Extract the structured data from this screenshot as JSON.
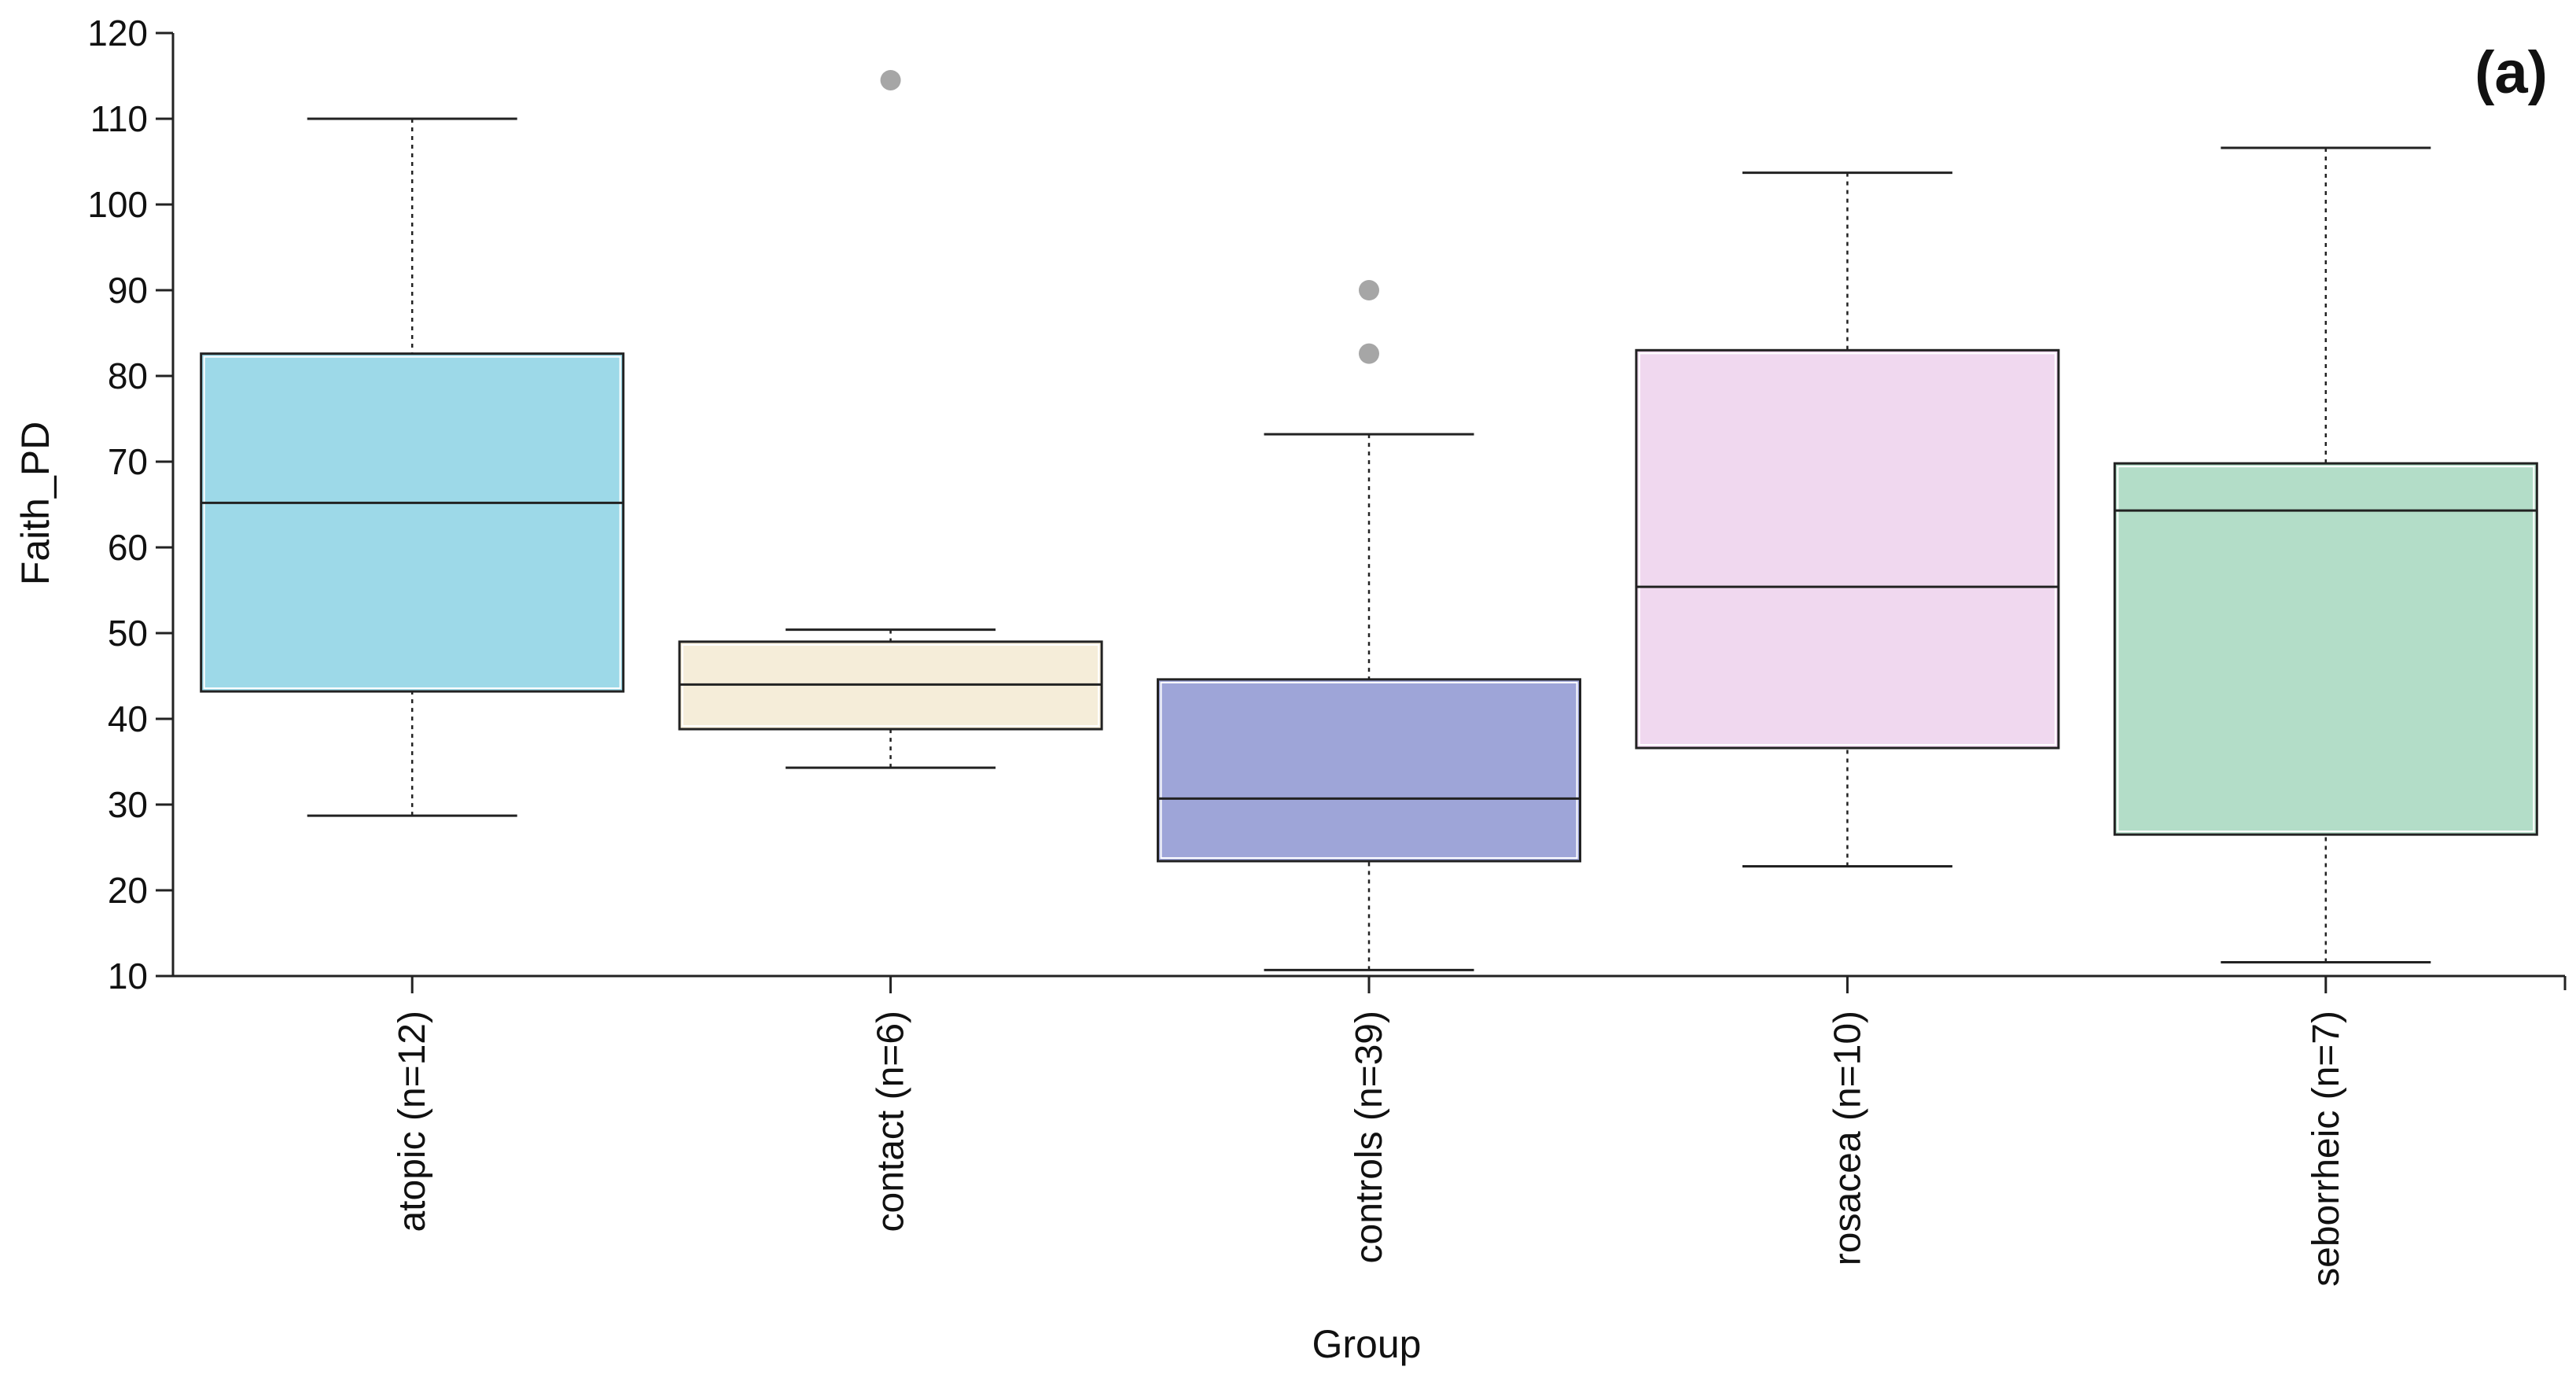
{
  "chart_data": {
    "type": "box",
    "panel_label": "(a)",
    "xlabel": "Group",
    "ylabel": "Faith_PD",
    "ylim": [
      10,
      120
    ],
    "yticks": [
      10,
      20,
      30,
      40,
      50,
      60,
      70,
      80,
      90,
      100,
      110,
      120
    ],
    "categories": [
      "atopic (n=12)",
      "contact (n=6)",
      "controls (n=39)",
      "rosacea (n=10)",
      "seborrheic (n=7)"
    ],
    "boxes": [
      {
        "name": "atopic (n=12)",
        "whisker_low": 28.7,
        "q1": 43.2,
        "median": 65.2,
        "q3": 82.6,
        "whisker_high": 110.0,
        "outliers": [],
        "color": "#9dd9e8"
      },
      {
        "name": "contact (n=6)",
        "whisker_low": 34.3,
        "q1": 38.8,
        "median": 44.0,
        "q3": 49.0,
        "whisker_high": 50.4,
        "outliers": [
          114.5
        ],
        "color": "#f5edd9"
      },
      {
        "name": "controls (n=39)",
        "whisker_low": 10.7,
        "q1": 23.4,
        "median": 30.7,
        "q3": 44.6,
        "whisker_high": 73.2,
        "outliers": [
          82.6,
          90.0
        ],
        "color": "#9ea5d8"
      },
      {
        "name": "rosacea (n=10)",
        "whisker_low": 22.8,
        "q1": 36.6,
        "median": 55.4,
        "q3": 83.0,
        "whisker_high": 103.7,
        "outliers": [],
        "color": "#f0d8ef"
      },
      {
        "name": "seborrheic (n=7)",
        "whisker_low": 11.6,
        "q1": 26.5,
        "median": 64.3,
        "q3": 69.8,
        "whisker_high": 106.6,
        "outliers": [],
        "color": "#b3ddc8"
      }
    ],
    "outlier_color": "#a6a6a6",
    "grid": false
  }
}
